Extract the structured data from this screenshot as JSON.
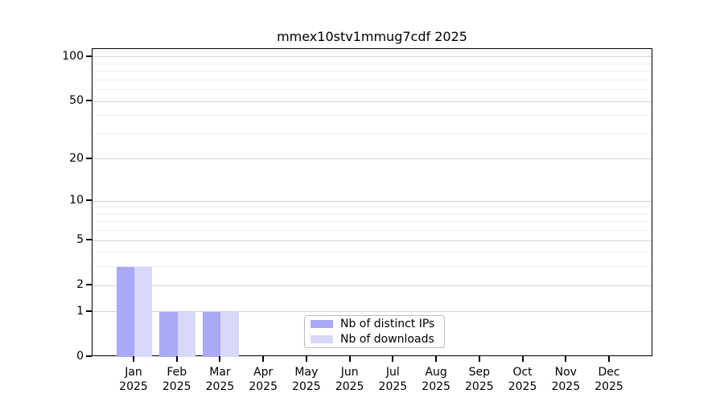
{
  "chart_data": {
    "type": "bar",
    "title": "mmex10stv1mmug7cdf 2025",
    "categories": [
      "Jan 2025",
      "Feb 2025",
      "Mar 2025",
      "Apr 2025",
      "May 2025",
      "Jun 2025",
      "Jul 2025",
      "Aug 2025",
      "Sep 2025",
      "Oct 2025",
      "Nov 2025",
      "Dec 2025"
    ],
    "series": [
      {
        "name": "Nb of distinct IPs",
        "color": "#a9a9f5",
        "values": [
          3,
          1,
          1,
          0,
          0,
          0,
          0,
          0,
          0,
          0,
          0,
          0
        ]
      },
      {
        "name": "Nb of downloads",
        "color": "#d8d8f9",
        "values": [
          3,
          1,
          1,
          0,
          0,
          0,
          0,
          0,
          0,
          0,
          0,
          0
        ]
      }
    ],
    "yscale": "log10(1+v)",
    "ylim": [
      0,
      113
    ],
    "y_major_ticks": [
      0,
      1,
      2,
      5,
      10,
      20,
      50,
      100
    ],
    "y_minor_ticks": [
      3,
      4,
      6,
      7,
      8,
      9,
      30,
      40,
      60,
      70,
      80,
      90,
      110
    ],
    "grid": "horizontal-only",
    "legend_position": "lower-center"
  },
  "colors": {
    "axis": "#000000",
    "major_grid": "#d2d2d2",
    "minor_grid": "#efefef",
    "background": "#ffffff",
    "legend_border": "#bcbcbc"
  }
}
